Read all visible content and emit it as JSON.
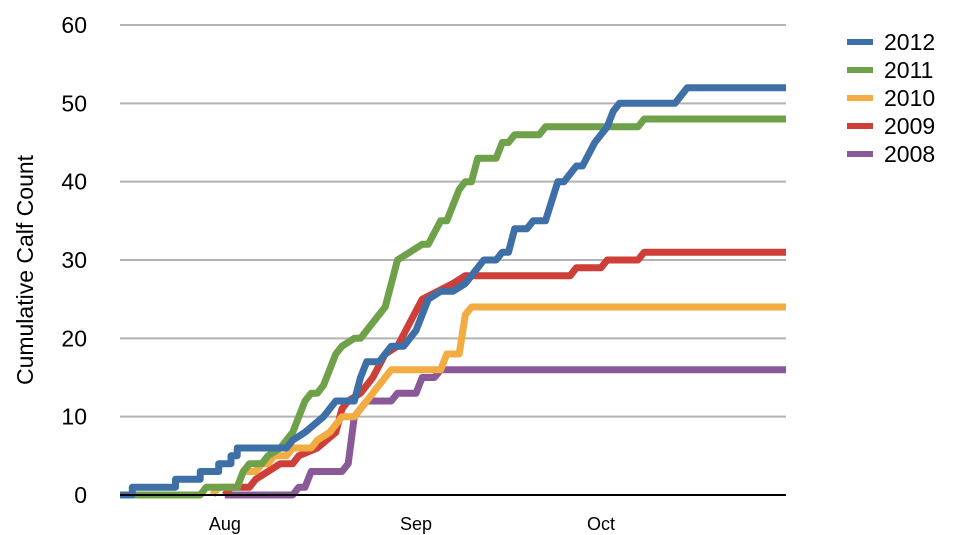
{
  "chart_data": {
    "type": "line",
    "title": "",
    "xlabel": "",
    "ylabel": "Cumulative Calf Count",
    "ylim": [
      0,
      60
    ],
    "yticks": [
      0,
      10,
      20,
      30,
      40,
      50,
      60
    ],
    "xlim": [
      "Jul 15",
      "Oct 31"
    ],
    "xticks": [
      {
        "label": "Aug",
        "date": "Aug 1"
      },
      {
        "label": "Sep",
        "date": "Sep 1"
      },
      {
        "label": "Oct",
        "date": "Oct 1"
      }
    ],
    "grid": true,
    "legend_position": "top-right",
    "series": [
      {
        "name": "2012",
        "color": "#3E6FA6",
        "points": [
          [
            "Jul 15",
            0
          ],
          [
            "Jul 17",
            0
          ],
          [
            "Jul 17",
            1
          ],
          [
            "Jul 24",
            1
          ],
          [
            "Jul 24",
            2
          ],
          [
            "Jul 28",
            2
          ],
          [
            "Jul 28",
            3
          ],
          [
            "Jul 31",
            3
          ],
          [
            "Jul 31",
            4
          ],
          [
            "Aug 2",
            4
          ],
          [
            "Aug 2",
            5
          ],
          [
            "Aug 3",
            5
          ],
          [
            "Aug 3",
            6
          ],
          [
            "Aug 11",
            6
          ],
          [
            "Aug 12",
            7
          ],
          [
            "Aug 14",
            8
          ],
          [
            "Aug 17",
            10
          ],
          [
            "Aug 19",
            12
          ],
          [
            "Aug 22",
            12
          ],
          [
            "Aug 23",
            15
          ],
          [
            "Aug 24",
            17
          ],
          [
            "Aug 26",
            17
          ],
          [
            "Aug 28",
            19
          ],
          [
            "Aug 30",
            19
          ],
          [
            "Sep 1",
            21
          ],
          [
            "Sep 3",
            25
          ],
          [
            "Sep 5",
            26
          ],
          [
            "Sep 7",
            26
          ],
          [
            "Sep 9",
            27
          ],
          [
            "Sep 11",
            29
          ],
          [
            "Sep 12",
            30
          ],
          [
            "Sep 14",
            30
          ],
          [
            "Sep 15",
            31
          ],
          [
            "Sep 16",
            31
          ],
          [
            "Sep 17",
            34
          ],
          [
            "Sep 19",
            34
          ],
          [
            "Sep 20",
            35
          ],
          [
            "Sep 22",
            35
          ],
          [
            "Sep 24",
            40
          ],
          [
            "Sep 25",
            40
          ],
          [
            "Sep 27",
            42
          ],
          [
            "Sep 28",
            42
          ],
          [
            "Sep 30",
            45
          ],
          [
            "Oct 2",
            47
          ],
          [
            "Oct 3",
            49
          ],
          [
            "Oct 4",
            50
          ],
          [
            "Oct 13",
            50
          ],
          [
            "Oct 15",
            52
          ],
          [
            "Oct 31",
            52
          ]
        ]
      },
      {
        "name": "2011",
        "color": "#6FA14A",
        "points": [
          [
            "Jul 17",
            0
          ],
          [
            "Jul 28",
            0
          ],
          [
            "Jul 29",
            1
          ],
          [
            "Aug 3",
            1
          ],
          [
            "Aug 4",
            3
          ],
          [
            "Aug 5",
            4
          ],
          [
            "Aug 7",
            4
          ],
          [
            "Aug 8",
            5
          ],
          [
            "Aug 10",
            6
          ],
          [
            "Aug 12",
            8
          ],
          [
            "Aug 14",
            12
          ],
          [
            "Aug 15",
            13
          ],
          [
            "Aug 16",
            13
          ],
          [
            "Aug 17",
            14
          ],
          [
            "Aug 19",
            18
          ],
          [
            "Aug 20",
            19
          ],
          [
            "Aug 22",
            20
          ],
          [
            "Aug 23",
            20
          ],
          [
            "Aug 26",
            23
          ],
          [
            "Aug 27",
            24
          ],
          [
            "Aug 29",
            30
          ],
          [
            "Aug 31",
            31
          ],
          [
            "Sep 2",
            32
          ],
          [
            "Sep 3",
            32
          ],
          [
            "Sep 5",
            35
          ],
          [
            "Sep 6",
            35
          ],
          [
            "Sep 8",
            39
          ],
          [
            "Sep 9",
            40
          ],
          [
            "Sep 10",
            40
          ],
          [
            "Sep 11",
            43
          ],
          [
            "Sep 14",
            43
          ],
          [
            "Sep 15",
            45
          ],
          [
            "Sep 16",
            45
          ],
          [
            "Sep 17",
            46
          ],
          [
            "Sep 21",
            46
          ],
          [
            "Sep 22",
            47
          ],
          [
            "Oct 7",
            47
          ],
          [
            "Oct 8",
            48
          ],
          [
            "Oct 31",
            48
          ]
        ]
      },
      {
        "name": "2010",
        "color": "#F2AC42",
        "points": [
          [
            "Jul 30",
            0
          ],
          [
            "Jul 31",
            1
          ],
          [
            "Aug 3",
            1
          ],
          [
            "Aug 4",
            3
          ],
          [
            "Aug 6",
            3
          ],
          [
            "Aug 7",
            4
          ],
          [
            "Aug 8",
            4
          ],
          [
            "Aug 9",
            5
          ],
          [
            "Aug 11",
            5
          ],
          [
            "Aug 12",
            6
          ],
          [
            "Aug 15",
            6
          ],
          [
            "Aug 16",
            7
          ],
          [
            "Aug 18",
            8
          ],
          [
            "Aug 20",
            10
          ],
          [
            "Aug 22",
            10
          ],
          [
            "Aug 24",
            12
          ],
          [
            "Aug 26",
            14
          ],
          [
            "Aug 28",
            16
          ],
          [
            "Sep 5",
            16
          ],
          [
            "Sep 6",
            18
          ],
          [
            "Sep 8",
            18
          ],
          [
            "Sep 9",
            23
          ],
          [
            "Sep 10",
            24
          ],
          [
            "Oct 31",
            24
          ]
        ]
      },
      {
        "name": "2009",
        "color": "#CF3F3A",
        "points": [
          [
            "Aug 1",
            0
          ],
          [
            "Aug 2",
            1
          ],
          [
            "Aug 5",
            1
          ],
          [
            "Aug 6",
            2
          ],
          [
            "Aug 8",
            3
          ],
          [
            "Aug 10",
            4
          ],
          [
            "Aug 12",
            4
          ],
          [
            "Aug 13",
            5
          ],
          [
            "Aug 16",
            6
          ],
          [
            "Aug 19",
            8
          ],
          [
            "Aug 20",
            11
          ],
          [
            "Aug 21",
            12
          ],
          [
            "Aug 23",
            13
          ],
          [
            "Aug 25",
            15
          ],
          [
            "Aug 27",
            18
          ],
          [
            "Aug 29",
            19
          ],
          [
            "Aug 31",
            22
          ],
          [
            "Sep 2",
            25
          ],
          [
            "Sep 7",
            27
          ],
          [
            "Sep 9",
            28
          ],
          [
            "Sep 26",
            28
          ],
          [
            "Sep 27",
            29
          ],
          [
            "Oct 1",
            29
          ],
          [
            "Oct 2",
            30
          ],
          [
            "Oct 7",
            30
          ],
          [
            "Oct 8",
            31
          ],
          [
            "Oct 31",
            31
          ]
        ]
      },
      {
        "name": "2008",
        "color": "#8A5A98",
        "points": [
          [
            "Aug 1",
            0
          ],
          [
            "Aug 12",
            0
          ],
          [
            "Aug 13",
            1
          ],
          [
            "Aug 14",
            1
          ],
          [
            "Aug 15",
            3
          ],
          [
            "Aug 20",
            3
          ],
          [
            "Aug 21",
            4
          ],
          [
            "Aug 22",
            10
          ],
          [
            "Aug 23",
            11
          ],
          [
            "Aug 24",
            12
          ],
          [
            "Aug 28",
            12
          ],
          [
            "Aug 29",
            13
          ],
          [
            "Sep 1",
            13
          ],
          [
            "Sep 2",
            15
          ],
          [
            "Sep 4",
            15
          ],
          [
            "Sep 5",
            16
          ],
          [
            "Oct 31",
            16
          ]
        ]
      }
    ]
  }
}
